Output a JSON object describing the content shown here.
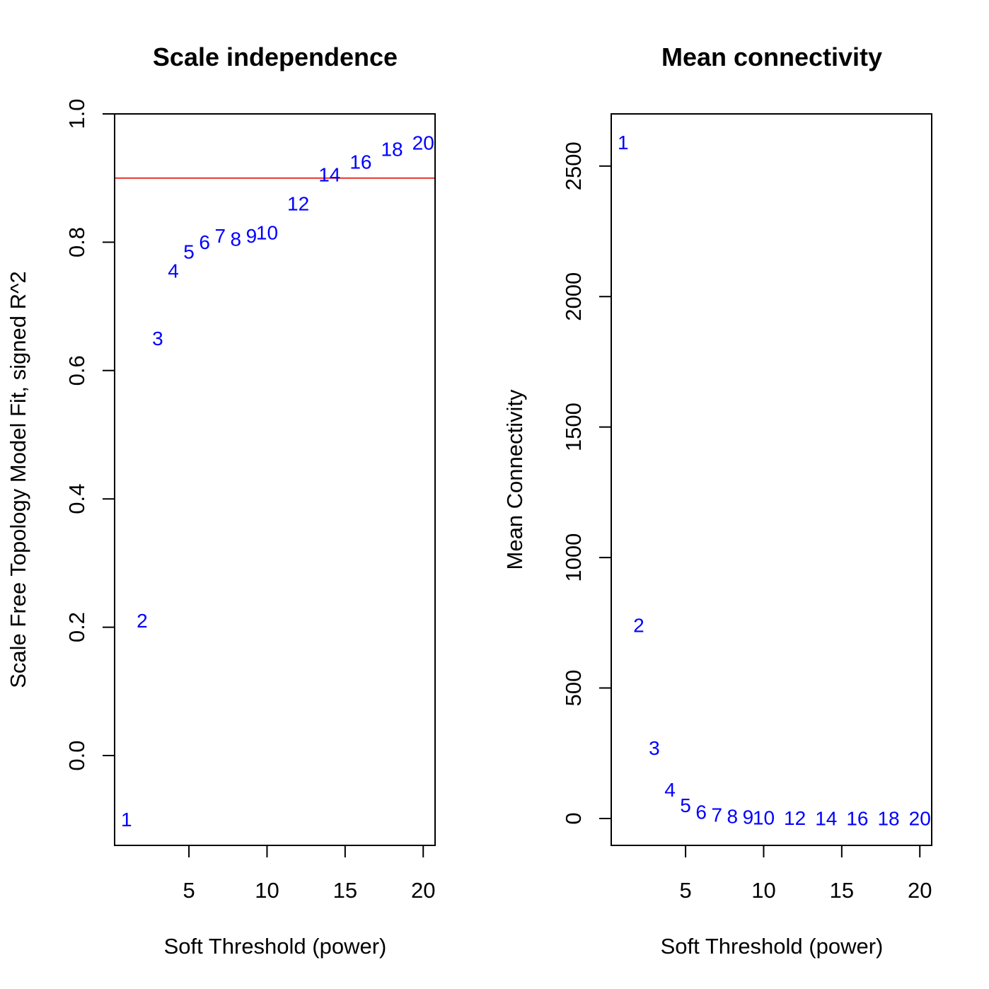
{
  "chart_data": [
    {
      "type": "scatter",
      "marker": "text-labels",
      "title": "Scale independence",
      "xlabel": "Soft Threshold (power)",
      "ylabel": "Scale Free Topology Model Fit, signed R^2",
      "xlim": [
        0.24,
        20.76
      ],
      "ylim": [
        -0.14,
        1.0
      ],
      "xticks": [
        5,
        10,
        15,
        20
      ],
      "yticks": [
        0.0,
        0.2,
        0.4,
        0.6,
        0.8,
        1.0
      ],
      "xtick_labels": [
        "5",
        "10",
        "15",
        "20"
      ],
      "ytick_labels": [
        "0.0",
        "0.2",
        "0.4",
        "0.6",
        "0.8",
        "1.0"
      ],
      "label_color": "#0000ff",
      "hline": {
        "y": 0.9,
        "color": "#e8302a"
      },
      "grid": false,
      "points": [
        {
          "x": 1,
          "y": -0.1,
          "label": "1"
        },
        {
          "x": 2,
          "y": 0.21,
          "label": "2"
        },
        {
          "x": 3,
          "y": 0.65,
          "label": "3"
        },
        {
          "x": 4,
          "y": 0.755,
          "label": "4"
        },
        {
          "x": 5,
          "y": 0.785,
          "label": "5"
        },
        {
          "x": 6,
          "y": 0.8,
          "label": "6"
        },
        {
          "x": 7,
          "y": 0.81,
          "label": "7"
        },
        {
          "x": 8,
          "y": 0.805,
          "label": "8"
        },
        {
          "x": 9,
          "y": 0.81,
          "label": "9"
        },
        {
          "x": 10,
          "y": 0.815,
          "label": "10"
        },
        {
          "x": 12,
          "y": 0.86,
          "label": "12"
        },
        {
          "x": 14,
          "y": 0.905,
          "label": "14"
        },
        {
          "x": 16,
          "y": 0.925,
          "label": "16"
        },
        {
          "x": 18,
          "y": 0.945,
          "label": "18"
        },
        {
          "x": 20,
          "y": 0.955,
          "label": "20"
        }
      ]
    },
    {
      "type": "scatter",
      "marker": "text-labels",
      "title": "Mean connectivity",
      "xlabel": "Soft Threshold (power)",
      "ylabel": "Mean Connectivity",
      "xlim": [
        0.24,
        20.76
      ],
      "ylim": [
        -103,
        2700
      ],
      "xticks": [
        5,
        10,
        15,
        20
      ],
      "yticks": [
        0,
        500,
        1000,
        1500,
        2000,
        2500
      ],
      "xtick_labels": [
        "5",
        "10",
        "15",
        "20"
      ],
      "ytick_labels": [
        "0",
        "500",
        "1000",
        "1500",
        "2000",
        "2500"
      ],
      "label_color": "#0000ff",
      "grid": false,
      "points": [
        {
          "x": 1,
          "y": 2590,
          "label": "1"
        },
        {
          "x": 2,
          "y": 740,
          "label": "2"
        },
        {
          "x": 3,
          "y": 270,
          "label": "3"
        },
        {
          "x": 4,
          "y": 110,
          "label": "4"
        },
        {
          "x": 5,
          "y": 50,
          "label": "5"
        },
        {
          "x": 6,
          "y": 25,
          "label": "6"
        },
        {
          "x": 7,
          "y": 14,
          "label": "7"
        },
        {
          "x": 8,
          "y": 8,
          "label": "8"
        },
        {
          "x": 9,
          "y": 5,
          "label": "9"
        },
        {
          "x": 10,
          "y": 3,
          "label": "10"
        },
        {
          "x": 12,
          "y": 1,
          "label": "12"
        },
        {
          "x": 14,
          "y": 0.5,
          "label": "14"
        },
        {
          "x": 16,
          "y": 0.3,
          "label": "16"
        },
        {
          "x": 18,
          "y": 0.2,
          "label": "18"
        },
        {
          "x": 20,
          "y": 0.1,
          "label": "20"
        }
      ]
    }
  ]
}
